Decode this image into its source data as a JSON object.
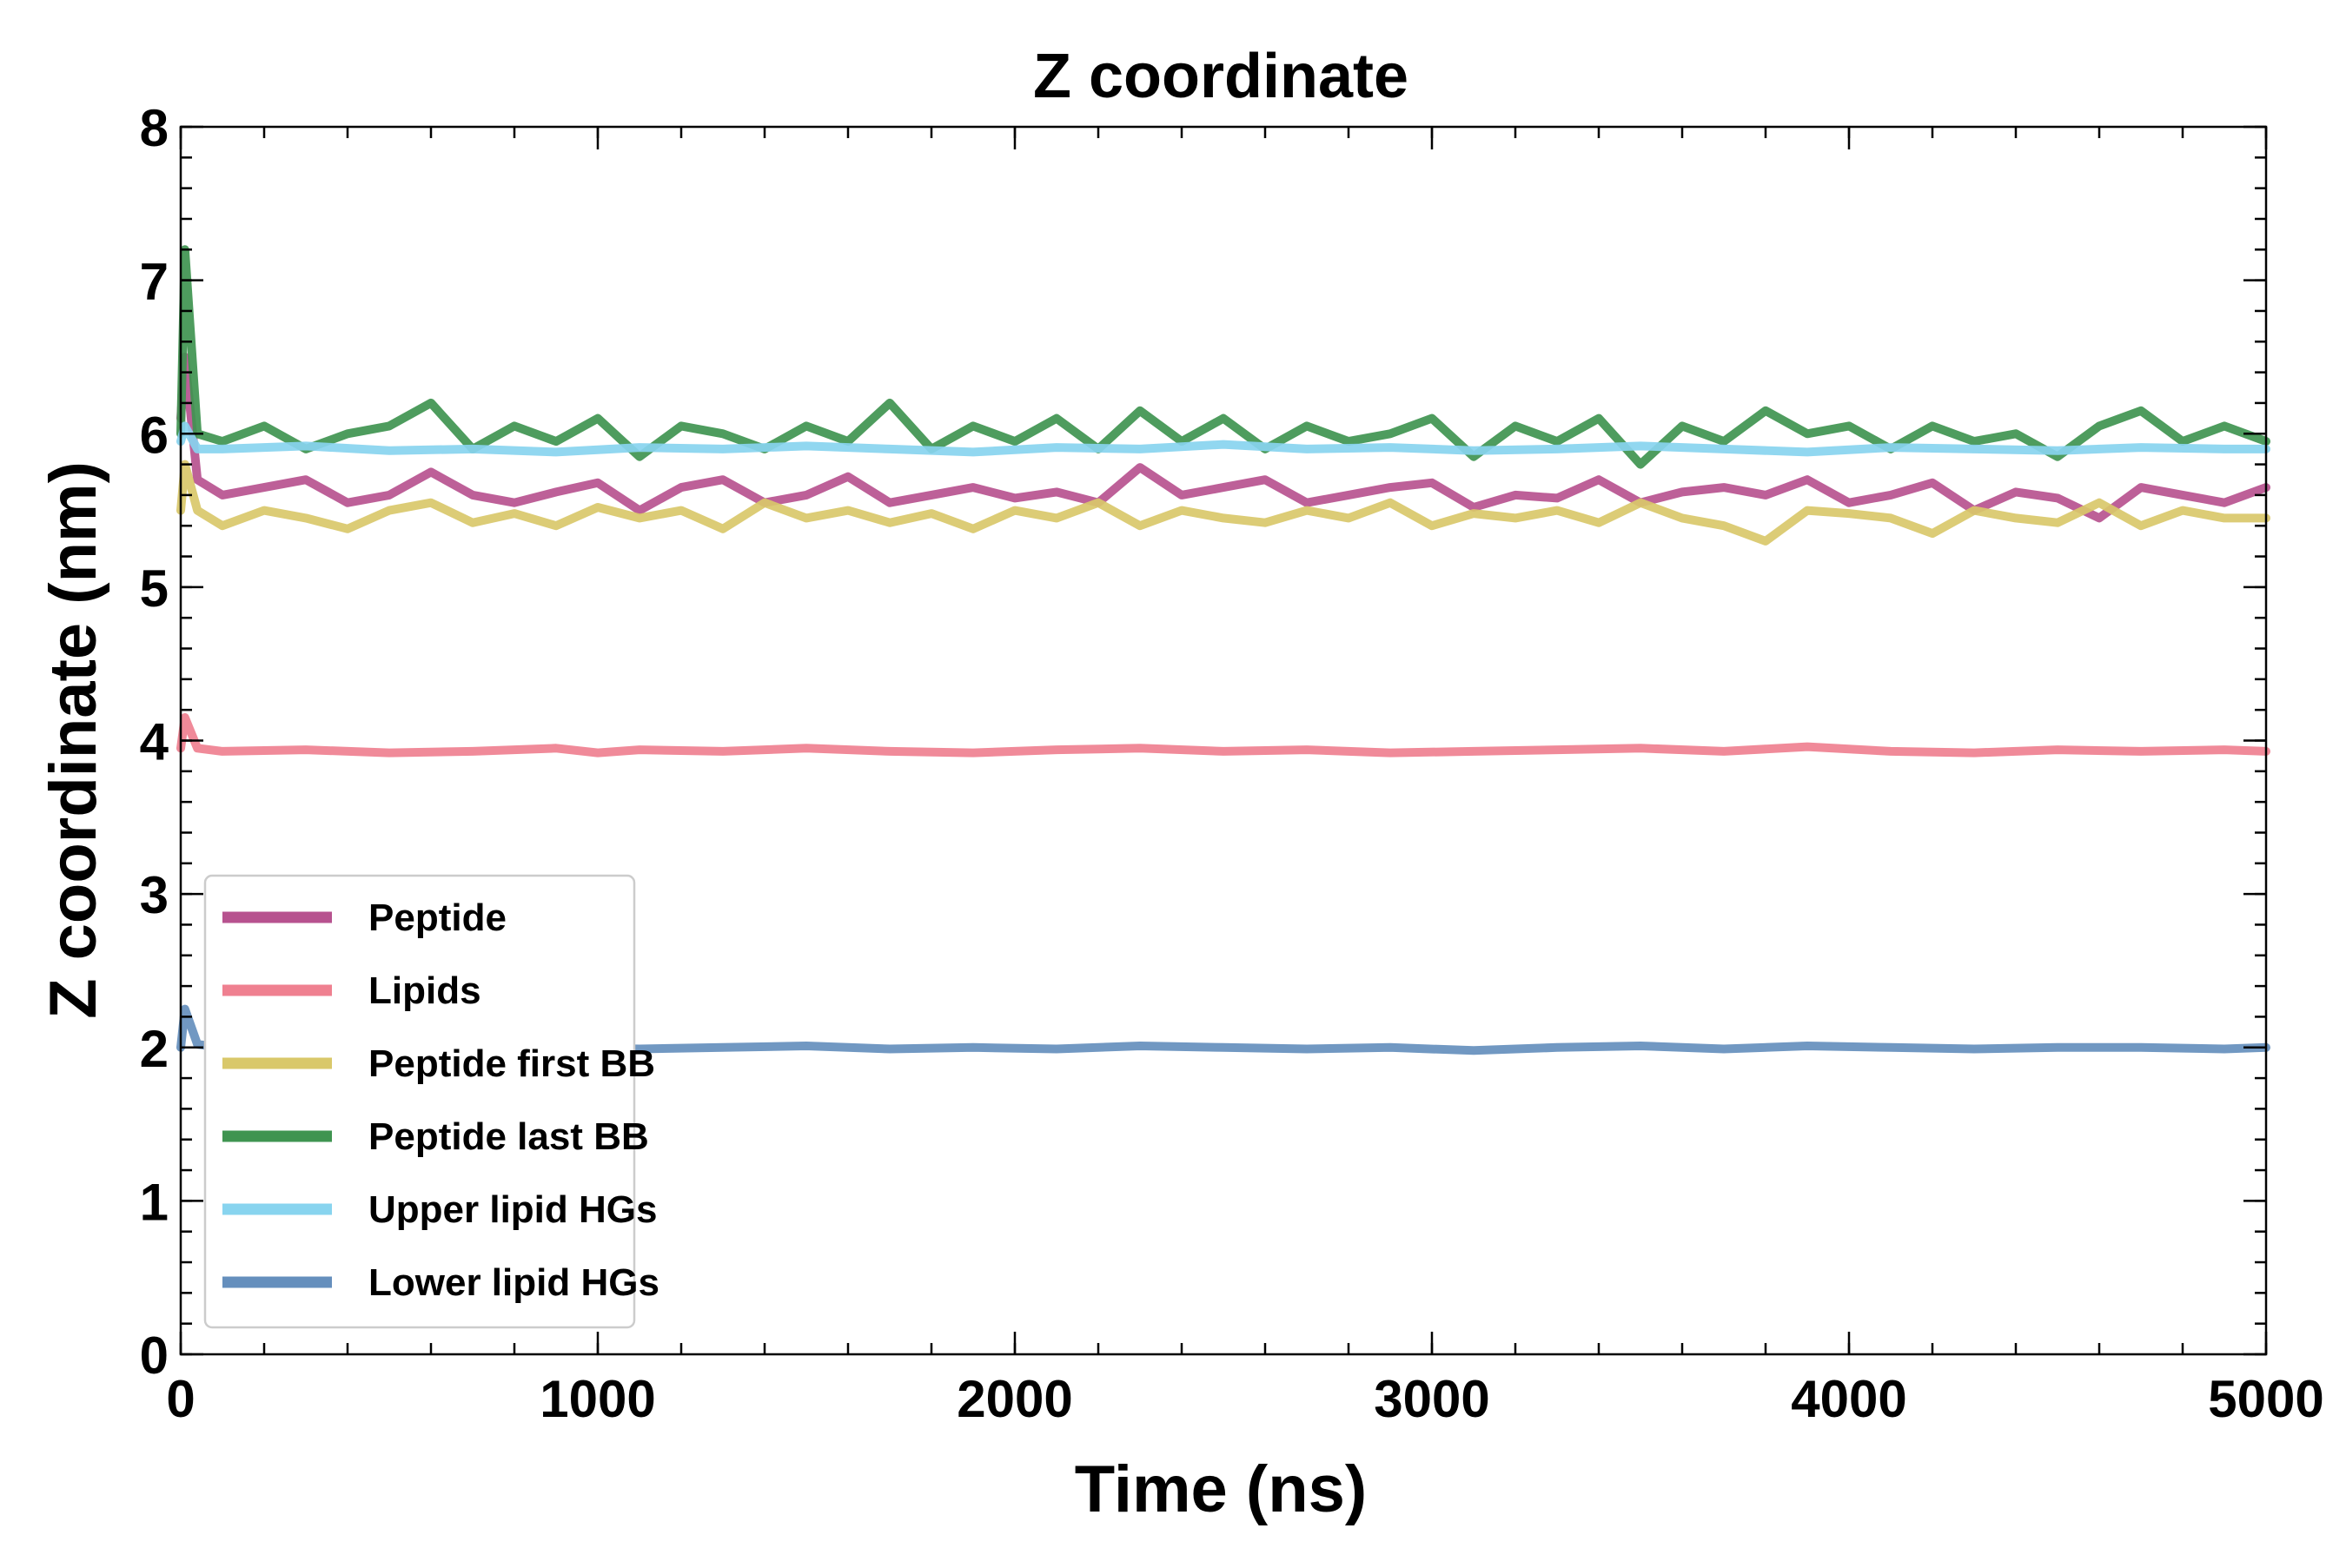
{
  "chart_data": {
    "type": "line",
    "title": "Z coordinate",
    "xlabel": "Time (ns)",
    "ylabel": "Z coordinate (nm)",
    "xlim": [
      0,
      5000
    ],
    "ylim": [
      0,
      8
    ],
    "x_ticks": [
      0,
      1000,
      2000,
      3000,
      4000,
      5000
    ],
    "x_tick_labels": [
      "0",
      "1000",
      "2000",
      "3000",
      "4000",
      "5000"
    ],
    "y_ticks": [
      0,
      1,
      2,
      3,
      4,
      5,
      6,
      7,
      8
    ],
    "y_tick_labels": [
      "0",
      "1",
      "2",
      "3",
      "4",
      "5",
      "6",
      "7",
      "8"
    ],
    "x_minor_step": 200,
    "y_minor_step": 0.2,
    "grid": false,
    "legend_position": "lower-left",
    "series": [
      {
        "name": "Peptide",
        "color": "#b7528f",
        "x": [
          0,
          10,
          40,
          100,
          200,
          300,
          400,
          500,
          600,
          700,
          800,
          900,
          1000,
          1100,
          1200,
          1300,
          1400,
          1500,
          1600,
          1700,
          1800,
          1900,
          2000,
          2100,
          2200,
          2300,
          2400,
          2500,
          2600,
          2700,
          2800,
          2900,
          3000,
          3100,
          3200,
          3300,
          3400,
          3500,
          3600,
          3700,
          3800,
          3900,
          4000,
          4100,
          4200,
          4300,
          4400,
          4500,
          4600,
          4700,
          4800,
          4900,
          5000
        ],
        "values": [
          6.1,
          6.5,
          5.7,
          5.6,
          5.65,
          5.7,
          5.55,
          5.6,
          5.75,
          5.6,
          5.55,
          5.62,
          5.68,
          5.5,
          5.65,
          5.7,
          5.55,
          5.6,
          5.72,
          5.55,
          5.6,
          5.65,
          5.58,
          5.62,
          5.55,
          5.78,
          5.6,
          5.65,
          5.7,
          5.55,
          5.6,
          5.65,
          5.68,
          5.52,
          5.6,
          5.58,
          5.7,
          5.55,
          5.62,
          5.65,
          5.6,
          5.7,
          5.55,
          5.6,
          5.68,
          5.5,
          5.62,
          5.58,
          5.45,
          5.65,
          5.6,
          5.55,
          5.65
        ]
      },
      {
        "name": "Lipids",
        "color": "#ef8090",
        "x": [
          0,
          10,
          40,
          100,
          300,
          500,
          700,
          900,
          1000,
          1100,
          1300,
          1500,
          1700,
          1900,
          2100,
          2300,
          2500,
          2700,
          2900,
          3100,
          3300,
          3500,
          3700,
          3900,
          4100,
          4300,
          4500,
          4700,
          4900,
          5000
        ],
        "values": [
          3.95,
          4.15,
          3.95,
          3.93,
          3.94,
          3.92,
          3.93,
          3.95,
          3.92,
          3.94,
          3.93,
          3.95,
          3.93,
          3.92,
          3.94,
          3.95,
          3.93,
          3.94,
          3.92,
          3.93,
          3.94,
          3.95,
          3.93,
          3.96,
          3.93,
          3.92,
          3.94,
          3.93,
          3.94,
          3.93
        ]
      },
      {
        "name": "Peptide first BB",
        "color": "#d9c86a",
        "x": [
          0,
          10,
          40,
          100,
          200,
          300,
          400,
          500,
          600,
          700,
          800,
          900,
          1000,
          1100,
          1200,
          1300,
          1400,
          1500,
          1600,
          1700,
          1800,
          1900,
          2000,
          2100,
          2200,
          2300,
          2400,
          2500,
          2600,
          2700,
          2800,
          2900,
          3000,
          3100,
          3200,
          3300,
          3400,
          3500,
          3600,
          3700,
          3800,
          3900,
          4000,
          4100,
          4200,
          4300,
          4400,
          4500,
          4600,
          4700,
          4800,
          4900,
          5000
        ],
        "values": [
          5.5,
          5.8,
          5.5,
          5.4,
          5.5,
          5.45,
          5.38,
          5.5,
          5.55,
          5.42,
          5.48,
          5.4,
          5.52,
          5.45,
          5.5,
          5.38,
          5.55,
          5.45,
          5.5,
          5.42,
          5.48,
          5.38,
          5.5,
          5.45,
          5.55,
          5.4,
          5.5,
          5.45,
          5.42,
          5.5,
          5.45,
          5.55,
          5.4,
          5.48,
          5.45,
          5.5,
          5.42,
          5.55,
          5.45,
          5.4,
          5.3,
          5.5,
          5.48,
          5.45,
          5.35,
          5.5,
          5.45,
          5.42,
          5.55,
          5.4,
          5.5,
          5.45,
          5.45
        ]
      },
      {
        "name": "Peptide last BB",
        "color": "#3f9450",
        "x": [
          0,
          10,
          40,
          100,
          200,
          300,
          400,
          500,
          600,
          700,
          800,
          900,
          1000,
          1100,
          1200,
          1300,
          1400,
          1500,
          1600,
          1700,
          1800,
          1900,
          2000,
          2100,
          2200,
          2300,
          2400,
          2500,
          2600,
          2700,
          2800,
          2900,
          3000,
          3100,
          3200,
          3300,
          3400,
          3500,
          3600,
          3700,
          3800,
          3900,
          4000,
          4100,
          4200,
          4300,
          4400,
          4500,
          4600,
          4700,
          4800,
          4900,
          5000
        ],
        "values": [
          6.0,
          7.2,
          6.0,
          5.95,
          6.05,
          5.9,
          6.0,
          6.05,
          6.2,
          5.9,
          6.05,
          5.95,
          6.1,
          5.85,
          6.05,
          6.0,
          5.9,
          6.05,
          5.95,
          6.2,
          5.9,
          6.05,
          5.95,
          6.1,
          5.9,
          6.15,
          5.95,
          6.1,
          5.9,
          6.05,
          5.95,
          6.0,
          6.1,
          5.85,
          6.05,
          5.95,
          6.1,
          5.8,
          6.05,
          5.95,
          6.15,
          6.0,
          6.05,
          5.9,
          6.05,
          5.95,
          6.0,
          5.85,
          6.05,
          6.15,
          5.95,
          6.05,
          5.95
        ]
      },
      {
        "name": "Upper lipid HGs",
        "color": "#88d4ef",
        "x": [
          0,
          10,
          40,
          100,
          300,
          500,
          700,
          900,
          1100,
          1300,
          1500,
          1700,
          1900,
          2100,
          2300,
          2500,
          2700,
          2900,
          3100,
          3300,
          3500,
          3700,
          3900,
          4100,
          4300,
          4500,
          4700,
          4900,
          5000
        ],
        "values": [
          5.95,
          6.05,
          5.9,
          5.9,
          5.92,
          5.89,
          5.9,
          5.88,
          5.91,
          5.9,
          5.92,
          5.9,
          5.88,
          5.91,
          5.9,
          5.93,
          5.9,
          5.91,
          5.89,
          5.9,
          5.92,
          5.9,
          5.88,
          5.91,
          5.9,
          5.89,
          5.91,
          5.9,
          5.9
        ]
      },
      {
        "name": "Lower lipid HGs",
        "color": "#658fbd",
        "x": [
          0,
          10,
          40,
          100,
          300,
          500,
          700,
          900,
          1100,
          1300,
          1500,
          1700,
          1900,
          2100,
          2300,
          2500,
          2700,
          2900,
          3100,
          3300,
          3500,
          3700,
          3900,
          4100,
          4300,
          4500,
          4700,
          4900,
          5000
        ],
        "values": [
          2.0,
          2.25,
          2.02,
          2.0,
          1.99,
          2.0,
          1.98,
          2.0,
          1.99,
          2.0,
          2.01,
          1.99,
          2.0,
          1.99,
          2.01,
          2.0,
          1.99,
          2.0,
          1.98,
          2.0,
          2.01,
          1.99,
          2.01,
          2.0,
          1.99,
          2.0,
          2.0,
          1.99,
          2.0
        ]
      }
    ]
  }
}
